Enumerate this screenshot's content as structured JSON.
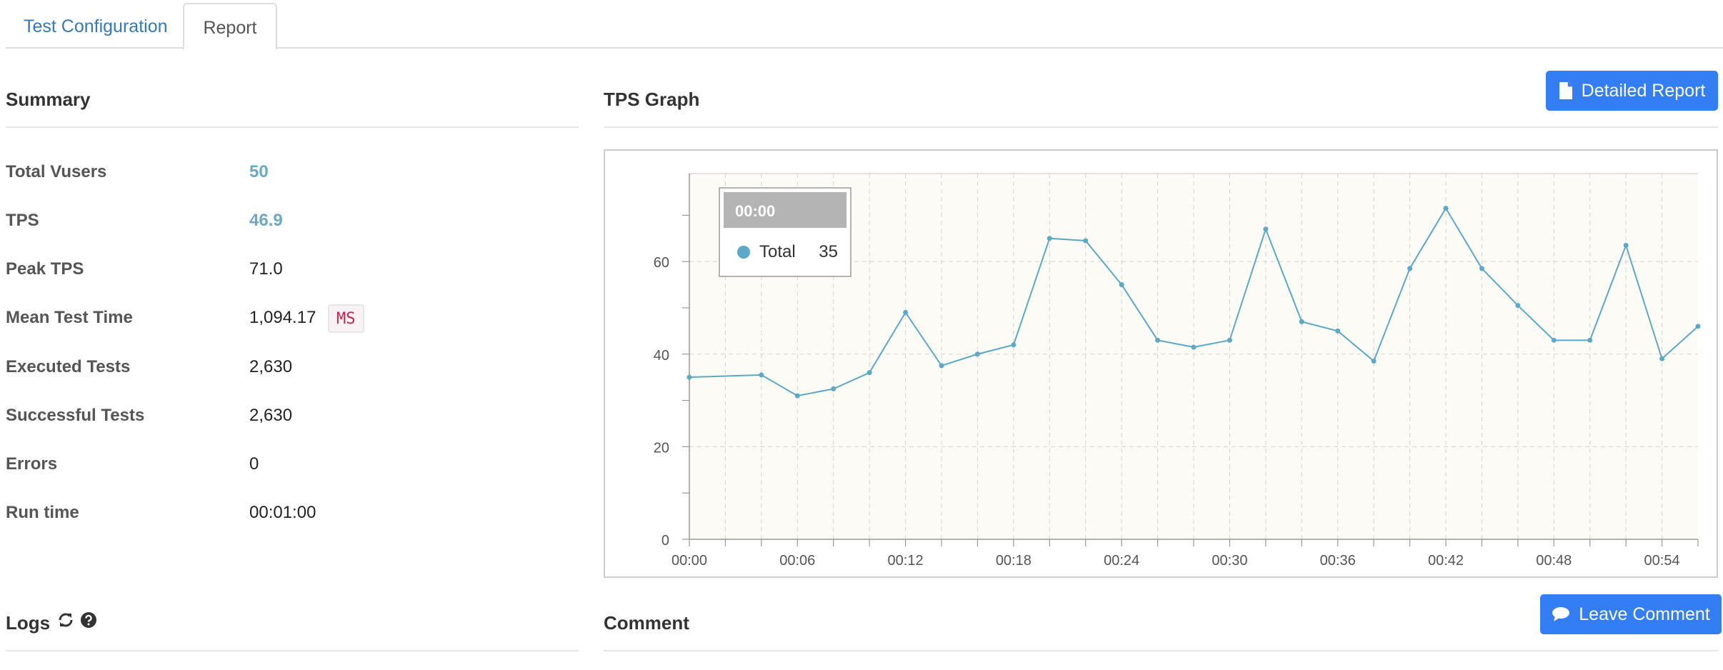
{
  "tabs": [
    {
      "label": "Test Configuration"
    },
    {
      "label": "Report"
    }
  ],
  "summary": {
    "title": "Summary",
    "rows": [
      {
        "label": "Total Vusers",
        "value": "50"
      },
      {
        "label": "TPS",
        "value": "46.9"
      },
      {
        "label": "Peak TPS",
        "value": "71.0"
      },
      {
        "label": "Mean Test Time",
        "value": "1,094.17",
        "unit": "MS"
      },
      {
        "label": "Executed Tests",
        "value": "2,630"
      },
      {
        "label": "Successful Tests",
        "value": "2,630"
      },
      {
        "label": "Errors",
        "value": "0"
      },
      {
        "label": "Run time",
        "value": "00:01:00"
      }
    ]
  },
  "graph": {
    "title": "TPS Graph",
    "detailed_report_label": "Detailed Report"
  },
  "tooltip": {
    "header": "00:00",
    "series": "Total",
    "value": "35"
  },
  "logs": {
    "title": "Logs",
    "icons": [
      "refresh-icon",
      "help-icon"
    ]
  },
  "comment": {
    "title": "Comment",
    "leave_comment_label": "Leave Comment"
  },
  "colors": {
    "accent": "#337ef5",
    "link": "#337ab7",
    "series": "#5aa9c8",
    "plot_bg": "#fcfbf5"
  },
  "chart_data": {
    "type": "line",
    "series": [
      {
        "name": "Total",
        "points": [
          [
            "00:00",
            35
          ],
          [
            "00:04",
            35.5
          ],
          [
            "00:06",
            31
          ],
          [
            "00:08",
            32.5
          ],
          [
            "00:10",
            36
          ],
          [
            "00:12",
            49
          ],
          [
            "00:14",
            37.5
          ],
          [
            "00:16",
            40
          ],
          [
            "00:18",
            42
          ],
          [
            "00:20",
            65
          ],
          [
            "00:22",
            64.5
          ],
          [
            "00:24",
            55
          ],
          [
            "00:26",
            43
          ],
          [
            "00:28",
            41.5
          ],
          [
            "00:30",
            43
          ],
          [
            "00:32",
            67
          ],
          [
            "00:34",
            47
          ],
          [
            "00:36",
            45
          ],
          [
            "00:38",
            38.5
          ],
          [
            "00:40",
            58.5
          ],
          [
            "00:42",
            71.5
          ],
          [
            "00:44",
            58.5
          ],
          [
            "00:46",
            50.5
          ],
          [
            "00:48",
            43
          ],
          [
            "00:50",
            43
          ],
          [
            "00:52",
            63.5
          ],
          [
            "00:54",
            39
          ],
          [
            "00:56",
            46
          ]
        ]
      }
    ],
    "x_ticks": [
      "00:00",
      "00:06",
      "00:12",
      "00:18",
      "00:24",
      "00:30",
      "00:36",
      "00:42",
      "00:48",
      "00:54"
    ],
    "y_ticks": [
      "0",
      "20",
      "40",
      "60"
    ],
    "xlim": [
      "00:00",
      "00:56"
    ],
    "ylim": [
      0,
      79
    ],
    "grid": true,
    "legend": "none"
  }
}
